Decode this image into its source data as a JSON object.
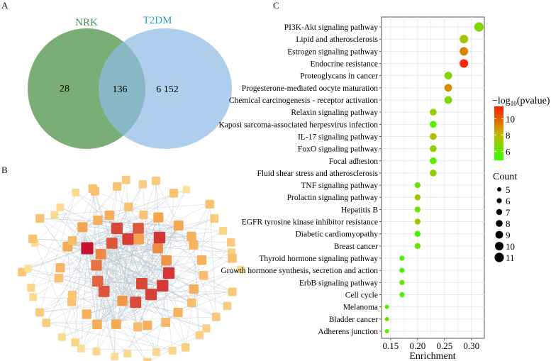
{
  "panels": {
    "a": "A",
    "b": "B",
    "c": "C"
  },
  "venn": {
    "sets": [
      {
        "name": "NRK",
        "color": "#5a9a54",
        "label_color": "#4a8a55"
      },
      {
        "name": "T2DM",
        "color": "#8fbbe3",
        "label_color": "#2aa0b8"
      }
    ],
    "only_nrk": "28",
    "overlap": "136",
    "only_t2dm": "6 152"
  },
  "network": {
    "node_color_low": "#fde8a4",
    "node_color_high": "#c8102e",
    "edge_color": "#b8c2cc"
  },
  "chart_data": {
    "type": "scatter",
    "xlabel": "Enrichment",
    "ylabel": "",
    "xlim": [
      0.133,
      0.324
    ],
    "xticks": [
      "0.15",
      "0.20",
      "0.25",
      "0.30"
    ],
    "grid": true,
    "categories": [
      "PI3K-Akt signaling pathway",
      "Lipid and atherosclerosis",
      "Estrogen signaling pathway",
      "Endocrine resistance",
      "Proteoglycans in cancer",
      "Progesterone-mediated oocyte maturation",
      "Chemical carcinogenesis - receptor activation",
      "Relaxin signaling pathway",
      "Kaposi sarcoma-associated herpesvirus infection",
      "IL-17 signaling pathway",
      "FoxO signaling pathway",
      "Focal adhesion",
      "Fluid shear stress and atherosclerosis",
      "TNF signaling pathway",
      "Prolactin signaling pathway",
      "Hepatitis B",
      "EGFR tyrosine kinase inhibitor resistance",
      "Diabetic cardiomyopathy",
      "Breast cancer",
      "Thyroid hormone signaling pathway",
      "Growth hormone synthesis, secretion and action",
      "ErbB signaling pathway",
      "Cell cycle",
      "Melanoma",
      "Bladder cancer",
      "Adherens junction"
    ],
    "enrichment": [
      0.314,
      0.286,
      0.286,
      0.286,
      0.257,
      0.257,
      0.257,
      0.229,
      0.229,
      0.229,
      0.229,
      0.229,
      0.229,
      0.2,
      0.2,
      0.2,
      0.2,
      0.2,
      0.2,
      0.171,
      0.171,
      0.171,
      0.171,
      0.143,
      0.143,
      0.143
    ],
    "count": [
      11,
      10,
      10,
      10,
      9,
      9,
      9,
      8,
      8,
      8,
      8,
      8,
      8,
      7,
      7,
      7,
      7,
      7,
      7,
      6,
      6,
      6,
      6,
      5,
      5,
      5
    ],
    "neg_log10_pvalue": [
      6.6,
      7.4,
      9.2,
      11.2,
      6.8,
      9.0,
      6.6,
      7.2,
      5.7,
      7.8,
      7.0,
      5.8,
      7.1,
      6.3,
      7.6,
      6.0,
      7.5,
      5.2,
      6.1,
      5.4,
      5.5,
      6.0,
      5.5,
      5.5,
      6.3,
      5.6
    ],
    "color_legend": {
      "title_prefix": "−log",
      "title_sub": "10",
      "title_suffix": "(pvalue)",
      "ticks": [
        "10",
        "8",
        "6"
      ],
      "range": [
        4.9,
        11.5
      ],
      "low_color": "#33ff00",
      "mid_color": "#c4b400",
      "high_color": "#ff1a00"
    },
    "size_legend": {
      "title": "Count",
      "values": [
        "5",
        "6",
        "7",
        "8",
        "9",
        "10",
        "11"
      ]
    }
  }
}
